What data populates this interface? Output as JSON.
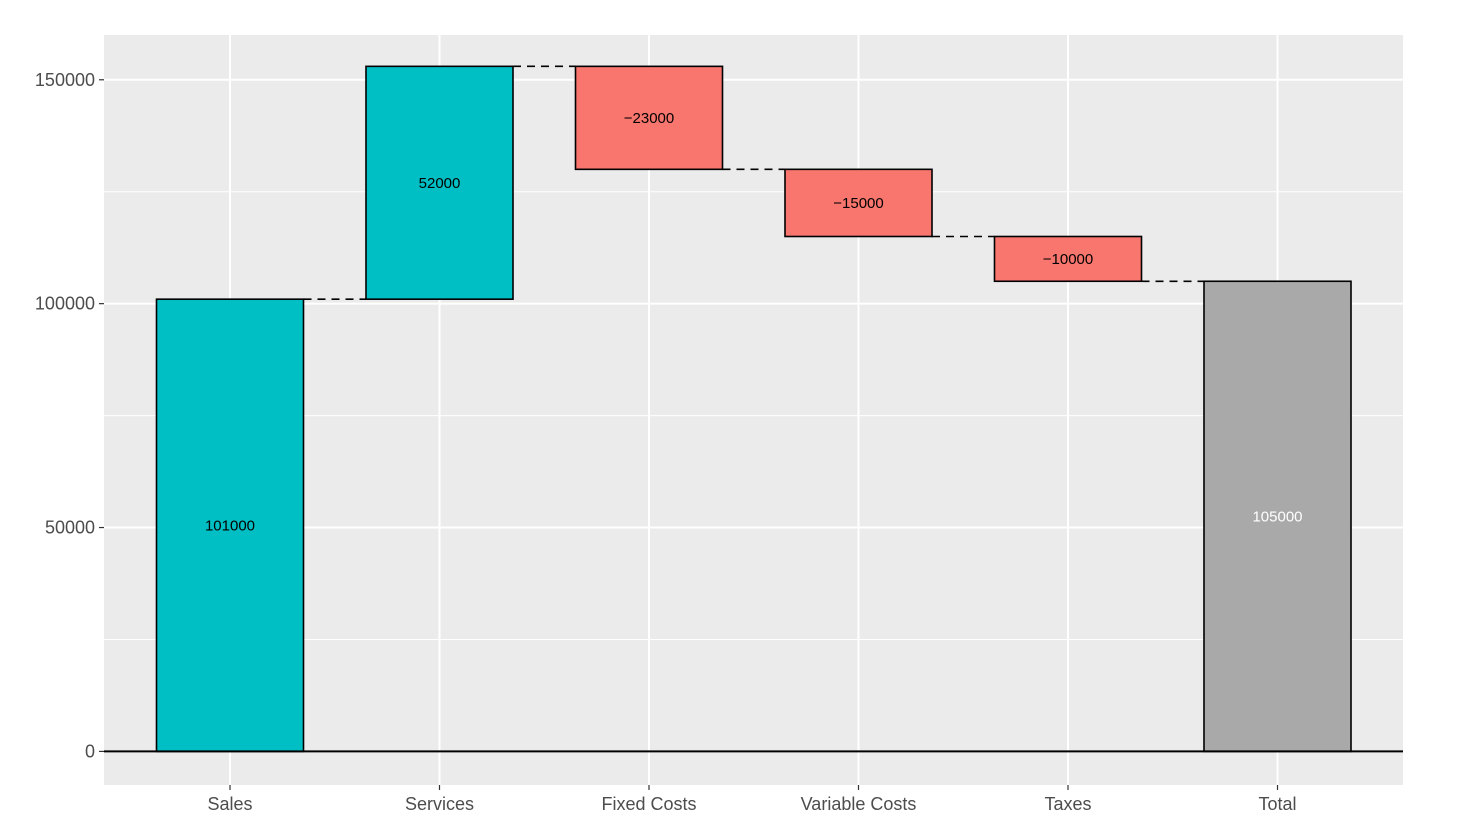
{
  "chart_data": {
    "type": "waterfall",
    "title": "",
    "xlabel": "",
    "ylabel": "",
    "ylim": [
      -7500,
      160000
    ],
    "y_ticks": [
      0,
      50000,
      100000,
      150000
    ],
    "grid": true,
    "categories": [
      "Sales",
      "Services",
      "Fixed Costs",
      "Variable Costs",
      "Taxes",
      "Total"
    ],
    "values": [
      101000,
      52000,
      -23000,
      -15000,
      -10000,
      105000
    ],
    "labels": [
      "101000",
      "52000",
      "−23000",
      "−15000",
      "−10000",
      "105000"
    ],
    "kinds": [
      "increase",
      "increase",
      "decrease",
      "decrease",
      "decrease",
      "total"
    ],
    "colors": {
      "increase": "#00BFC4",
      "decrease": "#F8766D",
      "total": "#A9A9A9",
      "panel": "#EBEBEB",
      "grid": "#FFFFFF",
      "total_label": "#FFFFFF",
      "label": "#000000"
    }
  }
}
